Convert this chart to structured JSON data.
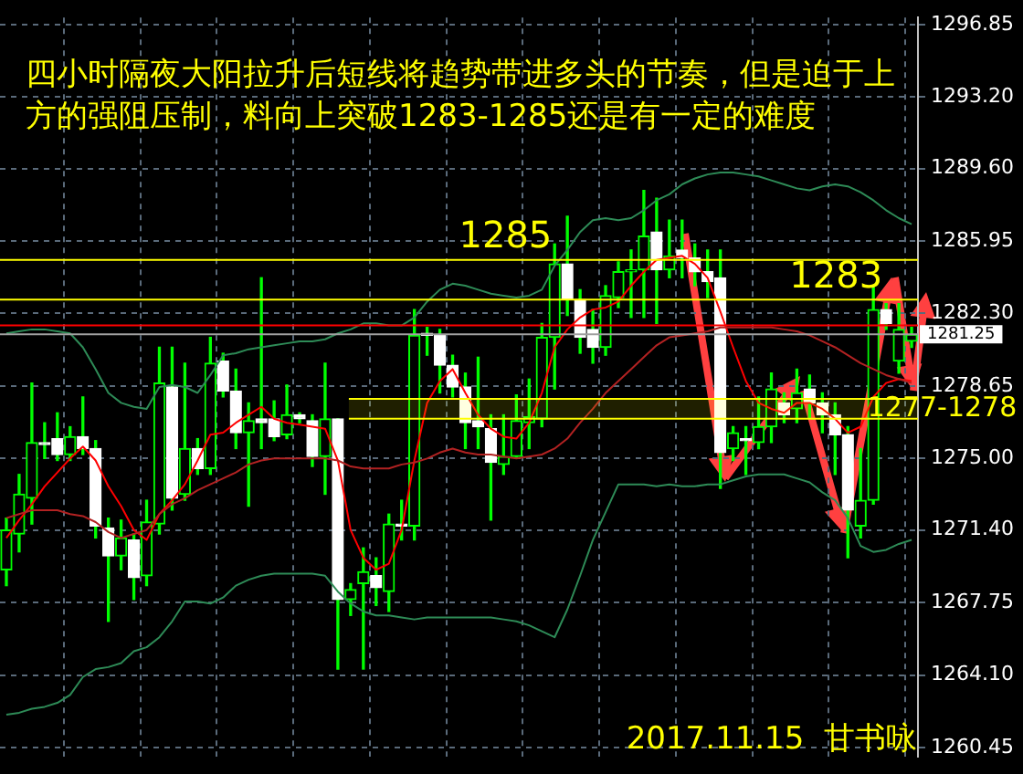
{
  "chart_data": {
    "type": "candlestick",
    "title": "四小时隔夜大阳拉升后短线将趋势带进多头的节奏，但是迫于上方的强阻压制，料向上突破1283-1285还是有一定的难度",
    "categories": [
      null,
      null,
      null,
      null,
      null,
      null,
      null,
      null,
      null,
      null,
      null,
      null,
      null,
      null,
      null,
      null,
      null,
      null,
      null,
      null,
      null,
      null,
      null,
      null,
      null,
      null,
      null,
      null,
      null,
      null,
      null,
      null,
      null,
      null,
      null,
      null,
      null,
      null,
      null,
      null,
      null,
      null,
      null,
      null,
      null,
      null,
      null,
      null,
      null,
      null,
      null,
      null,
      null,
      null,
      null,
      null,
      null,
      null,
      null,
      null,
      null,
      null,
      null,
      null,
      null,
      null,
      null,
      null,
      null,
      null,
      null,
      null
    ],
    "color": "#00ff00",
    "colors": [
      "#00ff00",
      "#00ff00",
      "#00ff00",
      "#ffffff",
      "#ffffff",
      "#00ff00",
      "#ffffff",
      "#ffffff",
      "#ffffff",
      "#00ff00",
      "#ffffff",
      "#00ff00",
      "#00ff00",
      "#ffffff",
      "#00ff00",
      "#ffffff",
      "#00ff00",
      "#ffffff",
      "#ffffff",
      "#00ff00",
      "#ffffff",
      "#ffffff",
      "#00ff00",
      "#ffffff",
      "#ffffff",
      "#00ff00",
      "#ffffff",
      "#00ff00",
      "#00ff00",
      "#ffffff",
      "#00ff00",
      "#ffffff",
      "#00ff00",
      "#ffffff",
      "#ffffff",
      "#ffffff",
      "#ffffff",
      "#ffffff",
      "#ffffff",
      "#00ff00",
      "#00ff00",
      "#00ff00",
      "#00ff00",
      "#00ff00",
      "#ffffff",
      "#ffffff",
      "#ffffff",
      "#00ff00",
      "#00ff00",
      "#00ff00",
      "#00ff00",
      "#ffffff",
      "#00ff00",
      "#ffffff",
      "#ffffff",
      "#ffffff",
      "#ffffff",
      "#00ff00",
      "#ffffff",
      "#00ff00",
      "#00ff00",
      "#ffffff",
      "#00ff00",
      "#ffffff",
      "#ffffff",
      "#ffffff",
      "#ffffff",
      "#00ff00",
      "#00ff00",
      "#ffffff",
      "#00ff00",
      "#00ff00"
    ],
    "ohlc": [
      [
        1269.4,
        1272.0,
        1268.6,
        1271.4
      ],
      [
        1271.2,
        1274.2,
        1270.3,
        1273.2
      ],
      [
        1273.0,
        1278.8,
        1271.7,
        1275.8
      ],
      [
        1275.8,
        1276.8,
        1275.0,
        1275.7
      ],
      [
        1276.0,
        1277.3,
        1274.9,
        1275.2
      ],
      [
        1275.2,
        1276.6,
        1274.9,
        1276.1
      ],
      [
        1276.1,
        1278.1,
        1275.2,
        1275.5
      ],
      [
        1275.5,
        1275.9,
        1271.0,
        1271.6
      ],
      [
        1271.5,
        1272.0,
        1266.8,
        1270.1
      ],
      [
        1270.1,
        1271.9,
        1269.4,
        1271.0
      ],
      [
        1270.9,
        1271.2,
        1267.9,
        1269.0
      ],
      [
        1269.1,
        1272.9,
        1268.6,
        1271.8
      ],
      [
        1271.7,
        1280.6,
        1271.2,
        1278.8
      ],
      [
        1278.6,
        1280.6,
        1272.4,
        1273.0
      ],
      [
        1273.2,
        1279.8,
        1272.9,
        1275.5
      ],
      [
        1275.5,
        1276.0,
        1274.2,
        1274.5
      ],
      [
        1274.5,
        1281.1,
        1274.2,
        1279.8
      ],
      [
        1279.9,
        1280.3,
        1278.1,
        1278.4
      ],
      [
        1278.4,
        1279.5,
        1275.5,
        1276.3
      ],
      [
        1276.3,
        1277.8,
        1272.6,
        1276.9
      ],
      [
        1277.0,
        1284.1,
        1275.5,
        1276.8
      ],
      [
        1277.0,
        1277.9,
        1275.9,
        1276.1
      ],
      [
        1276.2,
        1278.7,
        1276.0,
        1277.2
      ],
      [
        1277.2,
        1277.3,
        1276.8,
        1277.0
      ],
      [
        1276.9,
        1277.2,
        1274.6,
        1275.1
      ],
      [
        1275.1,
        1279.8,
        1273.2,
        1277.0
      ],
      [
        1277.0,
        1277.0,
        1264.4,
        1267.9
      ],
      [
        1267.9,
        1268.7,
        1267.1,
        1268.4
      ],
      [
        1268.7,
        1270.5,
        1264.4,
        1269.3
      ],
      [
        1269.1,
        1270.0,
        1267.6,
        1268.5
      ],
      [
        1268.3,
        1272.2,
        1267.3,
        1271.7
      ],
      [
        1271.7,
        1272.9,
        1270.9,
        1271.6
      ],
      [
        1271.6,
        1282.5,
        1270.9,
        1281.2
      ],
      [
        1281.3,
        1281.6,
        1280.2,
        1281.2
      ],
      [
        1281.2,
        1281.5,
        1278.3,
        1279.7
      ],
      [
        1279.7,
        1280.2,
        1278.1,
        1278.6
      ],
      [
        1278.6,
        1279.3,
        1275.5,
        1276.8
      ],
      [
        1276.9,
        1280.1,
        1275.5,
        1276.6
      ],
      [
        1276.5,
        1277.2,
        1271.9,
        1274.8
      ],
      [
        1274.7,
        1277.2,
        1274.2,
        1275.1
      ],
      [
        1275.1,
        1278.2,
        1275.1,
        1276.9
      ],
      [
        1276.8,
        1279.0,
        1275.5,
        1277.1
      ],
      [
        1277.0,
        1281.8,
        1276.6,
        1281.1
      ],
      [
        1281.1,
        1285.8,
        1278.5,
        1284.8
      ],
      [
        1284.8,
        1287.2,
        1282.2,
        1283.0
      ],
      [
        1283.0,
        1283.5,
        1280.3,
        1281.1
      ],
      [
        1281.5,
        1282.5,
        1279.8,
        1280.6
      ],
      [
        1280.6,
        1283.7,
        1280.2,
        1283.2
      ],
      [
        1283.1,
        1284.9,
        1282.6,
        1284.4
      ],
      [
        1284.4,
        1285.5,
        1282.1,
        1284.5
      ],
      [
        1284.5,
        1288.5,
        1282.1,
        1286.2
      ],
      [
        1286.4,
        1288.1,
        1281.8,
        1284.5
      ],
      [
        1284.5,
        1287.0,
        1284.1,
        1285.2
      ],
      [
        1285.5,
        1287.0,
        1284.1,
        1285.1
      ],
      [
        1285.1,
        1285.8,
        1283.7,
        1284.4
      ],
      [
        1284.4,
        1285.5,
        1283.1,
        1283.9
      ],
      [
        1284.1,
        1285.5,
        1273.5,
        1275.3
      ],
      [
        1275.5,
        1276.6,
        1274.9,
        1276.3
      ],
      [
        1276.0,
        1276.6,
        1274.2,
        1275.9
      ],
      [
        1275.8,
        1278.1,
        1275.5,
        1276.6
      ],
      [
        1276.6,
        1279.3,
        1275.8,
        1278.5
      ],
      [
        1277.8,
        1278.3,
        1276.8,
        1277.2
      ],
      [
        1277.5,
        1279.5,
        1276.8,
        1278.3
      ],
      [
        1278.5,
        1279.2,
        1277.0,
        1277.8
      ],
      [
        1277.8,
        1278.3,
        1276.3,
        1277.2
      ],
      [
        1277.2,
        1277.8,
        1274.2,
        1276.2
      ],
      [
        1276.2,
        1276.6,
        1270.0,
        1272.4
      ],
      [
        1271.6,
        1275.5,
        1271.0,
        1272.9
      ],
      [
        1272.9,
        1283.7,
        1272.7,
        1282.5
      ],
      [
        1282.5,
        1282.8,
        1281.5,
        1281.8
      ],
      [
        1279.9,
        1282.8,
        1279.3,
        1281.5
      ],
      [
        1280.9,
        1281.6,
        1280.6,
        1281.25
      ]
    ],
    "series": [
      {
        "type": "line",
        "color": "#2e8b57",
        "values": [
          1281.3,
          1281.4,
          1281.5,
          1281.5,
          1281.4,
          1281.3,
          1280.6,
          1279.5,
          1278.3,
          1277.8,
          1277.6,
          1277.5,
          1278.6,
          1278.7,
          1278.6,
          1278.3,
          1279.2,
          1280.2,
          1280.3,
          1280.5,
          1280.6,
          1280.7,
          1280.8,
          1280.9,
          1280.9,
          1281.0,
          1281.3,
          1281.5,
          1281.8,
          1281.8,
          1281.7,
          1281.7,
          1282.1,
          1282.9,
          1283.5,
          1283.8,
          1283.7,
          1283.5,
          1283.3,
          1283.2,
          1283.1,
          1283.2,
          1283.5,
          1284.7,
          1285.5,
          1286.4,
          1287.0,
          1287.1,
          1287.0,
          1287.1,
          1287.5,
          1288.0,
          1288.3,
          1288.8,
          1289.1,
          1289.3,
          1289.4,
          1289.4,
          1289.3,
          1289.2,
          1289.0,
          1288.8,
          1288.6,
          1288.5,
          1288.7,
          1288.8,
          1288.7,
          1288.4,
          1288.0,
          1287.5,
          1287.1,
          1286.8
        ]
      },
      {
        "type": "line",
        "color": "#2e8b57",
        "values": [
          1262.1,
          1262.2,
          1262.4,
          1262.5,
          1262.7,
          1263.1,
          1264.0,
          1264.4,
          1264.5,
          1264.7,
          1265.3,
          1265.5,
          1266.0,
          1266.8,
          1267.8,
          1267.8,
          1267.7,
          1268.0,
          1268.6,
          1268.9,
          1269.1,
          1269.2,
          1269.2,
          1269.2,
          1269.2,
          1269.1,
          1268.3,
          1267.7,
          1267.3,
          1267.1,
          1267.1,
          1267.0,
          1266.9,
          1267.0,
          1267.0,
          1267.0,
          1267.0,
          1267.0,
          1267.0,
          1266.9,
          1266.8,
          1266.6,
          1266.3,
          1266.0,
          1267.4,
          1269.1,
          1270.9,
          1272.3,
          1273.7,
          1273.7,
          1273.7,
          1273.6,
          1273.7,
          1273.6,
          1273.6,
          1273.7,
          1273.7,
          1273.9,
          1274.1,
          1274.2,
          1274.2,
          1274.2,
          1274.0,
          1273.8,
          1273.3,
          1272.9,
          1272.0,
          1270.6,
          1270.3,
          1270.4,
          1270.7,
          1270.9
        ]
      },
      {
        "type": "line",
        "color": "#b22222",
        "values": [
          1272.0,
          1272.2,
          1272.4,
          1272.4,
          1272.4,
          1272.2,
          1272.1,
          1271.8,
          1271.3,
          1271.0,
          1271.2,
          1271.4,
          1272.2,
          1272.7,
          1273.0,
          1273.4,
          1273.7,
          1274.0,
          1274.3,
          1274.7,
          1274.9,
          1275.0,
          1275.0,
          1275.0,
          1275.0,
          1275.0,
          1274.9,
          1274.6,
          1274.5,
          1274.5,
          1274.5,
          1274.7,
          1274.8,
          1275.0,
          1275.3,
          1275.5,
          1275.3,
          1275.2,
          1275.2,
          1275.1,
          1275.0,
          1275.1,
          1275.2,
          1275.5,
          1276.0,
          1276.8,
          1277.5,
          1278.3,
          1278.9,
          1279.5,
          1280.1,
          1280.7,
          1281.1,
          1281.2,
          1281.3,
          1281.4,
          1281.6,
          1281.6,
          1281.6,
          1281.6,
          1281.6,
          1281.5,
          1281.4,
          1281.2,
          1280.9,
          1280.6,
          1280.2,
          1279.8,
          1279.5,
          1279.2,
          1279.0,
          1278.8
        ]
      },
      {
        "type": "line",
        "color": "#ff0000",
        "values": [
          1271.0,
          1271.9,
          1272.7,
          1273.6,
          1274.3,
          1275.0,
          1275.6,
          1274.9,
          1273.6,
          1272.6,
          1271.4,
          1270.9,
          1272.2,
          1272.9,
          1273.7,
          1274.9,
          1276.2,
          1276.3,
          1276.8,
          1277.2,
          1277.6,
          1277.0,
          1276.8,
          1276.7,
          1276.6,
          1276.5,
          1274.9,
          1271.4,
          1270.0,
          1269.4,
          1269.7,
          1271.4,
          1274.9,
          1277.8,
          1278.9,
          1279.5,
          1278.3,
          1277.2,
          1276.5,
          1276.1,
          1276.0,
          1276.8,
          1278.3,
          1280.6,
          1281.5,
          1282.1,
          1282.5,
          1282.6,
          1282.9,
          1283.7,
          1284.4,
          1285.0,
          1285.1,
          1285.2,
          1284.8,
          1284.1,
          1282.4,
          1280.6,
          1278.9,
          1277.8,
          1277.5,
          1277.3,
          1277.8,
          1277.8,
          1277.5,
          1277.0,
          1276.3,
          1276.6,
          1278.1,
          1278.8,
          1279.0,
          1278.9
        ]
      }
    ],
    "ylim": [
      1260.0,
      1297.2
    ],
    "yticks": [
      1260.45,
      {
        "value": 1264.1,
        "label": "1264.10"
      },
      1267.75,
      {
        "value": 1271.4,
        "label": "1271.40"
      },
      {
        "value": 1275,
        "label": "1275.00"
      },
      1278.65,
      {
        "value": 1282.3,
        "label": "1282.30"
      },
      1285.95,
      {
        "value": 1289.6,
        "label": "1289.60"
      },
      {
        "value": 1293.2,
        "label": "1293.20"
      },
      1296.85
    ],
    "grid": true,
    "marker": "none",
    "ref_lines": [
      {
        "axis": "y",
        "value": 1281.7,
        "color": "#ff0000"
      },
      {
        "axis": "y",
        "value": 1281.25,
        "label": "1281.25",
        "color": "#a0a0a0"
      },
      {
        "axis": "y",
        "value": 1285,
        "label": "1285",
        "color": "#ffff00"
      },
      {
        "axis": "y",
        "value": 1283,
        "label": "1283",
        "color": "#ffff00"
      }
    ],
    "bands": [
      {
        "axis": "y",
        "from": 1277,
        "to": 1278,
        "label": "1277-1278",
        "color": "#ffff00"
      }
    ],
    "annotations": [
      "2017.11.15  甘书咏"
    ]
  }
}
